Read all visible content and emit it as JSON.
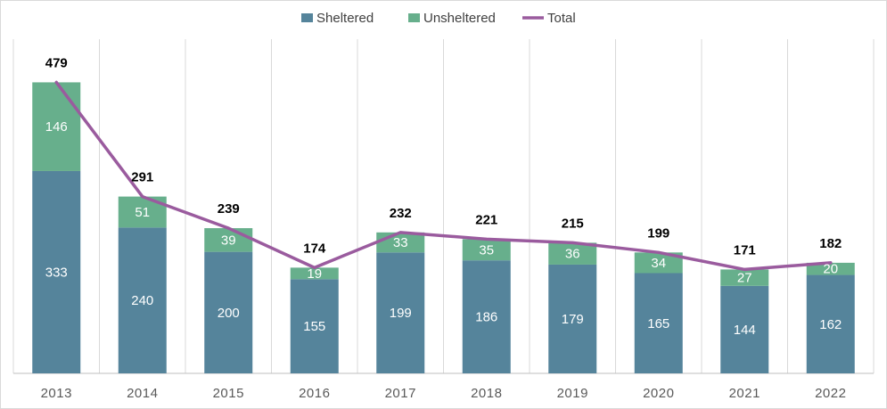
{
  "chart_data": {
    "type": "bar",
    "stacked": true,
    "title": "",
    "xlabel": "",
    "ylabel": "",
    "ylim": [
      0,
      550
    ],
    "grid": "vertical",
    "legend_position": "top",
    "categories": [
      "2013",
      "2014",
      "2015",
      "2016",
      "2017",
      "2018",
      "2019",
      "2020",
      "2021",
      "2022"
    ],
    "series": [
      {
        "name": "Sheltered",
        "color": "#55849B",
        "values": [
          333,
          240,
          200,
          155,
          199,
          186,
          179,
          165,
          144,
          162
        ]
      },
      {
        "name": "Unsheltered",
        "color": "#67AF8C",
        "values": [
          146,
          51,
          39,
          19,
          33,
          35,
          36,
          34,
          27,
          20
        ]
      }
    ],
    "line": {
      "name": "Total",
      "type": "line",
      "color": "#9A5B9E",
      "values": [
        479,
        291,
        239,
        174,
        232,
        221,
        215,
        199,
        171,
        182
      ]
    }
  }
}
